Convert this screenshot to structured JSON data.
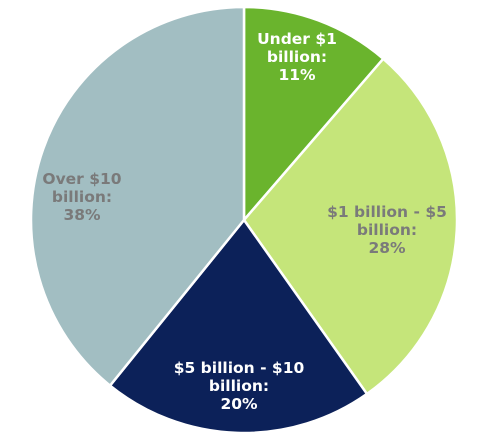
{
  "chart_data": {
    "type": "pie",
    "title": "",
    "start_angle_deg": 0,
    "direction": "clockwise",
    "slices": [
      {
        "category": "Under $1 billion",
        "value": 11,
        "label_lines": [
          "Under $1",
          "billion:",
          "11%"
        ],
        "color": "#6ab42d",
        "label_color": "#ffffff"
      },
      {
        "category": "$1 billion - $5 billion",
        "value": 28,
        "label_lines": [
          "$1 billion - $5",
          "billion:",
          "28%"
        ],
        "color": "#c5e57a",
        "label_color": "#7a7a7a"
      },
      {
        "category": "$5 billion - $10 billion",
        "value": 20,
        "label_lines": [
          "$5 billion - $10",
          "billion:",
          "20%"
        ],
        "color": "#0c2159",
        "label_color": "#ffffff"
      },
      {
        "category": "Over $10 billion",
        "value": 38,
        "label_lines": [
          "Over $10",
          "billion:",
          "38%"
        ],
        "color": "#a2bec2",
        "label_color": "#7a7a7a"
      }
    ],
    "slice_border_color": "#ffffff"
  }
}
